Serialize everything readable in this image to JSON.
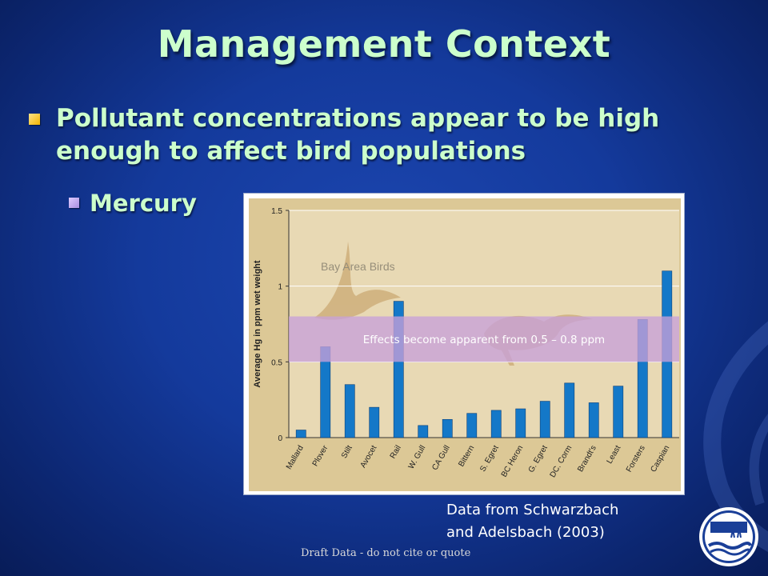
{
  "slide": {
    "title": "Management Context",
    "bullet": "Pollutant concentrations appear to be high enough to affect bird populations",
    "sub_bullet": "Mercury",
    "credit_line1": "Data from Schwarzbach",
    "credit_line2": "and Adelsbach (2003)",
    "draft_note": "Draft Data - do not cite or quote",
    "colors": {
      "background": "#143a9c",
      "title_text": "#ccffcc",
      "bullet_marker": "#f4b400",
      "sub_bullet_marker": "#b8a0e8"
    },
    "icons": [
      "logo-icon"
    ]
  },
  "chart_data": {
    "type": "bar",
    "ylabel": "Average Hg in ppm wet weight",
    "xlabel": "",
    "ylim": [
      0,
      1.5
    ],
    "yticks": [
      0,
      0.5,
      1,
      1.5
    ],
    "ytick_labels": [
      "0",
      "0.5",
      "1",
      "1.5"
    ],
    "grid": true,
    "watermark_label": "Bay Area Birds",
    "categories": [
      "Mallard",
      "Plover",
      "Stilt",
      "Avocet",
      "Rail",
      "W. Gull",
      "CA Gull",
      "Bittern",
      "S. Egret",
      "BC Heron",
      "G. Egret",
      "DC. Corm",
      "Brandt's",
      "Least",
      "Forsters",
      "Caspian"
    ],
    "values": [
      0.05,
      0.6,
      0.35,
      0.2,
      0.9,
      0.08,
      0.12,
      0.16,
      0.18,
      0.19,
      0.24,
      0.36,
      0.23,
      0.34,
      0.78,
      1.1
    ],
    "annotation": {
      "text": "Effects become apparent from 0.5 – 0.8 ppm",
      "range": [
        0.5,
        0.8
      ]
    },
    "colors": {
      "bar": "#1478c8",
      "plot_background": "#e8d9b4",
      "band": "#c8a0d8"
    }
  }
}
